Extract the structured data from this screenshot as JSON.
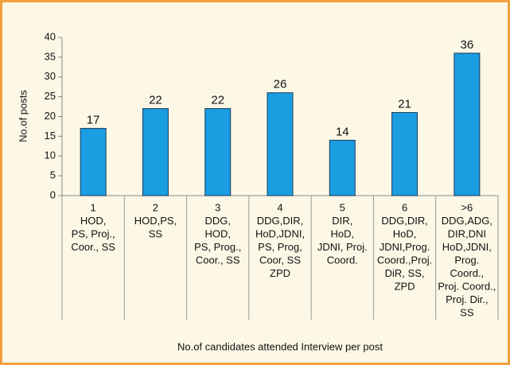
{
  "chart_data": {
    "type": "bar",
    "y_label": "No.of posts",
    "x_label": "No.of candidates attended Interview per post",
    "categories": [
      [
        "1",
        "HOD,",
        "PS, Proj.,",
        "Coor., SS"
      ],
      [
        "2",
        "HOD,PS,",
        "SS"
      ],
      [
        "3",
        "DDG,",
        "HOD,",
        "PS, Prog.,",
        "Coor., SS"
      ],
      [
        "4",
        "DDG,DIR,",
        "HoD,JDNI,",
        "PS, Prog,",
        "Coor, SS",
        "ZPD"
      ],
      [
        "5",
        "DIR,",
        "HoD,",
        "JDNI, Proj.",
        "Coord."
      ],
      [
        "6",
        "DDG,DIR,",
        "HoD,",
        "JDNI,Prog.",
        "Coord.,Proj.",
        "DiR, SS,",
        "ZPD"
      ],
      [
        ">6",
        "DDG,ADG,",
        "DIR,DNI",
        "HoD,JDNI,",
        "Prog.",
        "Coord.,",
        "Proj. Coord.,",
        "Proj. Dir.,",
        "SS"
      ]
    ],
    "values": [
      17,
      22,
      22,
      26,
      14,
      21,
      36
    ],
    "color": "#1b9de2",
    "ylim": [
      0,
      40
    ],
    "yticks": [
      0,
      5,
      10,
      15,
      20,
      25,
      30,
      35,
      40
    ]
  }
}
